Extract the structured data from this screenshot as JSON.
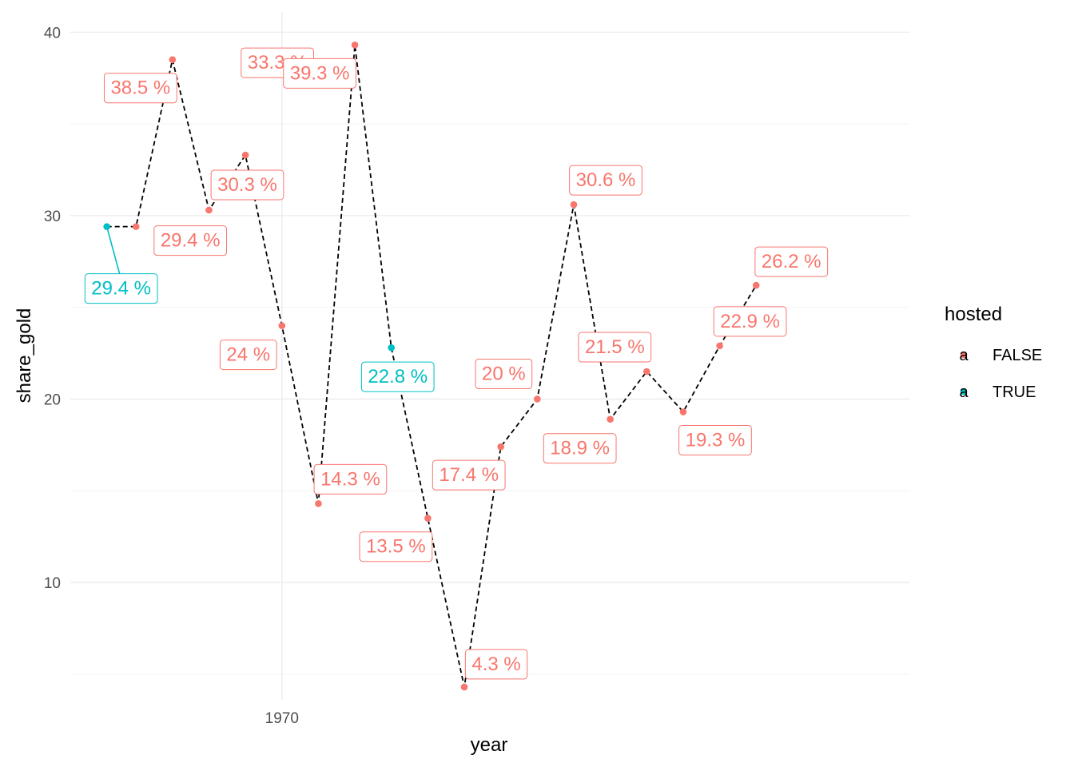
{
  "chart_data": {
    "type": "line",
    "title": "",
    "xlabel": "year",
    "ylabel": "share_gold",
    "xlim": [
      1964.2,
      1987.2
    ],
    "ylim": [
      3.6,
      41.1
    ],
    "x_ticks": [
      1970
    ],
    "y_ticks": [
      10,
      20,
      30,
      40
    ],
    "grid": true,
    "legend": {
      "title": "hosted",
      "position": "right",
      "items": [
        {
          "label": "FALSE",
          "color": "#F8766D",
          "glyph": "a"
        },
        {
          "label": "TRUE",
          "color": "#00BFC4",
          "glyph": "a"
        }
      ]
    },
    "colors": {
      "FALSE": "#F8766D",
      "TRUE": "#00BFC4",
      "line": "#000000"
    },
    "points": [
      {
        "year": 1965.2,
        "share_gold": 29.4,
        "hosted": "TRUE",
        "label": "29.4 %"
      },
      {
        "year": 1966.0,
        "share_gold": 29.4,
        "hosted": "FALSE",
        "label": "29.4 %"
      },
      {
        "year": 1967.0,
        "share_gold": 38.5,
        "hosted": "FALSE",
        "label": "38.5 %"
      },
      {
        "year": 1968.0,
        "share_gold": 30.3,
        "hosted": "FALSE",
        "label": "30.3 %"
      },
      {
        "year": 1969.0,
        "share_gold": 33.3,
        "hosted": "FALSE",
        "label": "33.3 %"
      },
      {
        "year": 1970.0,
        "share_gold": 24.0,
        "hosted": "FALSE",
        "label": "24 %"
      },
      {
        "year": 1971.0,
        "share_gold": 14.3,
        "hosted": "FALSE",
        "label": "14.3 %"
      },
      {
        "year": 1972.0,
        "share_gold": 39.3,
        "hosted": "FALSE",
        "label": "39.3 %"
      },
      {
        "year": 1973.0,
        "share_gold": 22.8,
        "hosted": "TRUE",
        "label": "22.8 %"
      },
      {
        "year": 1974.0,
        "share_gold": 13.5,
        "hosted": "FALSE",
        "label": "13.5 %"
      },
      {
        "year": 1975.0,
        "share_gold": 4.3,
        "hosted": "FALSE",
        "label": "4.3 %"
      },
      {
        "year": 1976.0,
        "share_gold": 17.4,
        "hosted": "FALSE",
        "label": "17.4 %"
      },
      {
        "year": 1977.0,
        "share_gold": 20.0,
        "hosted": "FALSE",
        "label": "20 %"
      },
      {
        "year": 1978.0,
        "share_gold": 30.6,
        "hosted": "FALSE",
        "label": "30.6 %"
      },
      {
        "year": 1979.0,
        "share_gold": 18.9,
        "hosted": "FALSE",
        "label": "18.9 %"
      },
      {
        "year": 1980.0,
        "share_gold": 21.5,
        "hosted": "FALSE",
        "label": "21.5 %"
      },
      {
        "year": 1981.0,
        "share_gold": 19.3,
        "hosted": "FALSE",
        "label": "19.3 %"
      },
      {
        "year": 1982.0,
        "share_gold": 22.9,
        "hosted": "FALSE",
        "label": "22.9 %"
      },
      {
        "year": 1983.0,
        "share_gold": 26.2,
        "hosted": "FALSE",
        "label": "26.2 %"
      }
    ]
  }
}
